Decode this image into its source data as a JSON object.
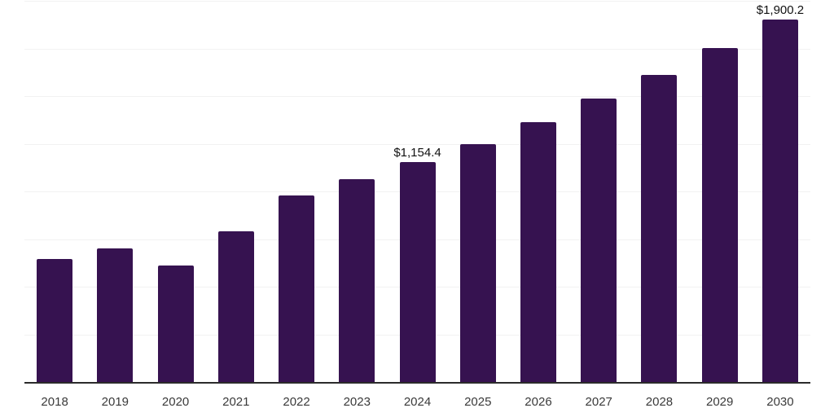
{
  "chart_data": {
    "type": "bar",
    "categories": [
      "2018",
      "2019",
      "2020",
      "2021",
      "2022",
      "2023",
      "2024",
      "2025",
      "2026",
      "2027",
      "2028",
      "2029",
      "2030"
    ],
    "values": [
      645,
      702,
      613,
      792,
      980,
      1065,
      1154.4,
      1250,
      1364,
      1486,
      1612,
      1752,
      1900.2
    ],
    "annotations": [
      {
        "category": "2024",
        "text": "$1,154.4"
      },
      {
        "category": "2030",
        "text": "$1,900.2"
      }
    ],
    "title": "",
    "xlabel": "",
    "ylabel": "",
    "ylim": [
      0,
      2000
    ],
    "gridline_step": 250,
    "grid": true,
    "legend": false,
    "y_axis_labels_visible": false,
    "colors": {
      "bar": "#361250",
      "axis": "#2b2b2b",
      "gridline": "#f2f2f2",
      "value_label": "#111111",
      "tick_label": "#3a3a3a",
      "background": "#ffffff"
    }
  }
}
